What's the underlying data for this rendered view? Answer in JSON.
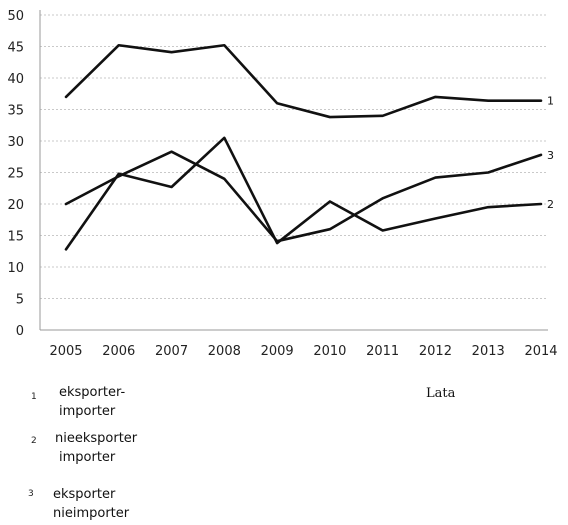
{
  "chart_data": {
    "type": "line",
    "x": [
      2005,
      2006,
      2007,
      2008,
      2009,
      2010,
      2011,
      2012,
      2013,
      2014
    ],
    "xlabel": "Lata",
    "ylim": [
      0,
      50
    ],
    "yticks": [
      0,
      5,
      10,
      15,
      20,
      25,
      30,
      35,
      40,
      45,
      50
    ],
    "grid": true,
    "series": [
      {
        "label": "1",
        "name": "eksporter-importer",
        "values": [
          37,
          45.2,
          44.1,
          45.2,
          36,
          33.8,
          34,
          37,
          36.4,
          36.4
        ]
      },
      {
        "label": "2",
        "name": "nieeksporter importer",
        "values": [
          12.8,
          24.8,
          22.7,
          30.5,
          13.8,
          20.4,
          15.8,
          17.7,
          19.5,
          20
        ]
      },
      {
        "label": "3",
        "name": "eksporter nieimporter",
        "values": [
          20,
          24.4,
          28.3,
          24,
          14.1,
          16,
          20.9,
          24.2,
          25,
          27.8
        ]
      }
    ]
  },
  "legend": [
    {
      "number": "1",
      "line1": "eksporter-",
      "line2": "importer"
    },
    {
      "number": "2",
      "line1": "nieeksporter",
      "line2": "importer"
    },
    {
      "number": "3",
      "line1": "eksporter",
      "line2": "nieimporter"
    }
  ]
}
